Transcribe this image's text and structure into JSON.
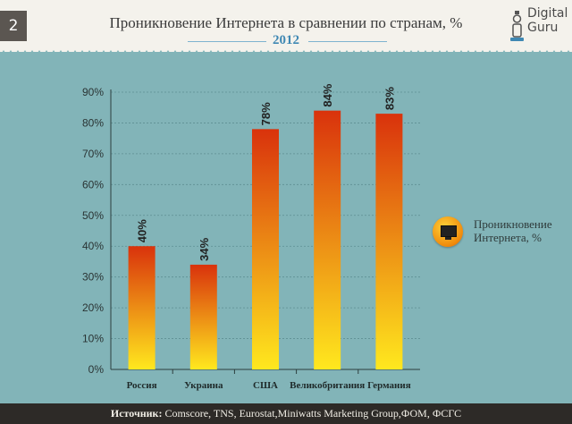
{
  "header": {
    "slide_number": "2",
    "title": "Проникновение Интернета в сравнении по странам, %",
    "year": "2012",
    "logo_line1": "Digital",
    "logo_line2": "Guru"
  },
  "legend": {
    "label": "Проникновение Интернета, %"
  },
  "footer": {
    "source_label": "Источник:",
    "source_text": " Comscore, TNS, Eurostat,Miniwatts Marketing Group,ФОМ, ФСГС"
  },
  "colors": {
    "bar_top": "#d9320c",
    "bar_bottom": "#ffe81e",
    "background": "#82b4b8"
  },
  "chart_data": {
    "type": "bar",
    "title": "Проникновение Интернета в сравнении по странам, %",
    "categories": [
      "Россия",
      "Украина",
      "США",
      "Великобритания",
      "Германия"
    ],
    "series": [
      {
        "name": "Проникновение Интернета, %",
        "values": [
          40,
          34,
          78,
          84,
          83
        ]
      }
    ],
    "data_labels": [
      "40%",
      "34%",
      "78%",
      "84%",
      "83%"
    ],
    "y_ticks": [
      "0%",
      "10%",
      "20%",
      "30%",
      "40%",
      "50%",
      "60%",
      "70%",
      "80%",
      "90%"
    ],
    "ylim": [
      0,
      90
    ],
    "grid": true,
    "legend_position": "right"
  }
}
